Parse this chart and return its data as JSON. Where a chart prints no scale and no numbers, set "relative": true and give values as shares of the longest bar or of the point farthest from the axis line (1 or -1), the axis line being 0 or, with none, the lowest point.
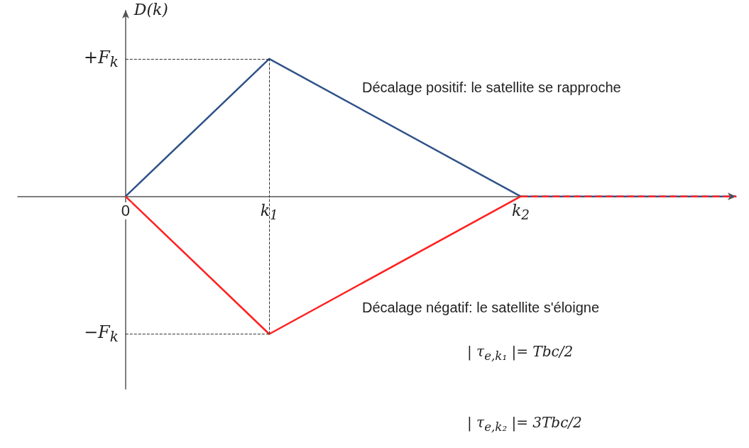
{
  "chart_data": {
    "type": "line",
    "ylabel": "D(k)",
    "categories": [
      null,
      null,
      null,
      "0",
      null,
      null,
      null,
      "k$_{1}$",
      null,
      null,
      null,
      null,
      null,
      null,
      "k$_{2}$",
      null,
      null,
      null,
      null,
      null,
      null
    ],
    "relative": true,
    "series": [
      {
        "color": "#2f5289",
        "values": [
          null,
          null,
          null,
          0,
          null,
          null,
          null,
          1,
          null,
          null,
          null,
          null,
          null,
          null,
          0,
          null,
          null,
          null,
          null,
          null,
          0
        ]
      },
      {
        "color": "#ff2020",
        "values": [
          null,
          null,
          null,
          0,
          null,
          null,
          null,
          -1,
          null,
          null,
          null,
          null,
          null,
          null,
          0,
          null,
          null,
          null,
          null,
          null,
          null
        ]
      },
      {
        "color": "#ff2020",
        "values": [
          null,
          null,
          null,
          null,
          null,
          null,
          null,
          null,
          null,
          null,
          null,
          null,
          null,
          null,
          0,
          null,
          null,
          null,
          null,
          null,
          0
        ],
        "line_style": "dashed"
      }
    ],
    "ref_lines": [
      {
        "axis": "x",
        "value": "k$_{1}$",
        "color": "#333333",
        "line_style": "dashed"
      },
      {
        "axis": "y",
        "value": 1,
        "label": "+F$_{k}$",
        "color": "#333333",
        "line_style": "dashed"
      },
      {
        "axis": "y",
        "value": -1,
        "label": "−F$_{k}$",
        "color": "#333333",
        "line_style": "dashed"
      }
    ],
    "annotations": [
      "Décalage positif: le satellite se rapproche",
      "Décalage négatif: le satellite s'éloigne",
      "| τ$_{e,k₁}$ |= Tbc/2",
      "| τ$_{e,k₂}$ |= 3Tbc/2"
    ],
    "grid": false,
    "marker": "none"
  }
}
